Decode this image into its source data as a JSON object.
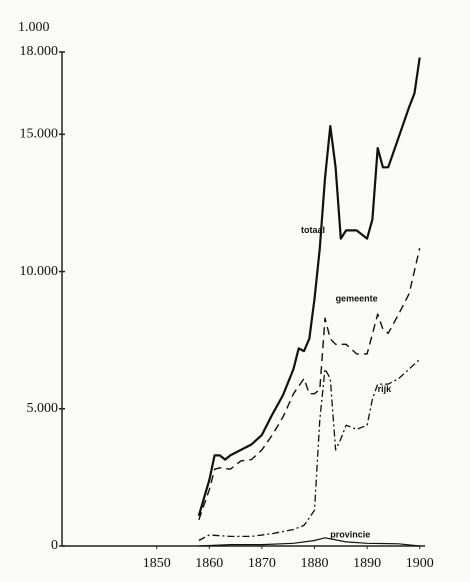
{
  "chart_data": {
    "type": "line",
    "y_label": "1.000",
    "xlim": [
      1832,
      1901
    ],
    "ylim": [
      0,
      18000
    ],
    "xticks": [
      1850,
      1860,
      1870,
      1880,
      1890,
      1900
    ],
    "yticks": [
      0,
      {
        "value": 5000,
        "label": "5.000"
      },
      {
        "value": 10000,
        "label": "10.000"
      },
      {
        "value": 15000,
        "label": "15.000"
      },
      {
        "value": 18000,
        "label": "18.000"
      }
    ],
    "series": [
      {
        "name": "totaal",
        "color": "#111111",
        "style": "solid",
        "x": [
          1858,
          1860,
          1861,
          1862,
          1863,
          1864,
          1866,
          1868,
          1870,
          1872,
          1874,
          1876,
          1877,
          1878,
          1879,
          1880,
          1881,
          1882,
          1883,
          1884,
          1885,
          1886,
          1888,
          1890,
          1891,
          1892,
          1893,
          1894,
          1896,
          1898,
          1899,
          1900
        ],
        "values": [
          1100,
          2400,
          3300,
          3300,
          3150,
          3300,
          3500,
          3700,
          4050,
          4800,
          5500,
          6450,
          7200,
          7100,
          7550,
          9000,
          10850,
          13400,
          15300,
          13800,
          11200,
          11500,
          11500,
          11200,
          11900,
          14500,
          13800,
          13800,
          14900,
          16000,
          16500,
          17800
        ]
      },
      {
        "name": "gemeente",
        "color": "#111111",
        "style": "dashed",
        "x": [
          1858,
          1860,
          1861,
          1862,
          1864,
          1866,
          1868,
          1870,
          1872,
          1874,
          1876,
          1878,
          1879,
          1880,
          1881,
          1882,
          1883,
          1884,
          1886,
          1888,
          1890,
          1892,
          1893,
          1894,
          1896,
          1898,
          1900
        ],
        "values": [
          950,
          2050,
          2800,
          2850,
          2800,
          3100,
          3150,
          3500,
          4050,
          4700,
          5550,
          6100,
          5550,
          5550,
          5700,
          8300,
          7550,
          7350,
          7350,
          7000,
          7000,
          8450,
          7900,
          7750,
          8450,
          9200,
          10850
        ]
      },
      {
        "name": "rijk",
        "color": "#111111",
        "style": "dashdot",
        "x": [
          1858,
          1860,
          1864,
          1868,
          1872,
          1876,
          1878,
          1880,
          1881,
          1882,
          1883,
          1884,
          1885,
          1886,
          1888,
          1890,
          1891,
          1892,
          1894,
          1896,
          1898,
          1900
        ],
        "values": [
          200,
          400,
          350,
          350,
          450,
          600,
          750,
          1300,
          4600,
          6450,
          6100,
          3500,
          3900,
          4400,
          4250,
          4400,
          5350,
          5900,
          5900,
          6100,
          6450,
          6800
        ]
      },
      {
        "name": "provincie",
        "color": "#111111",
        "style": "thin",
        "x": [
          1858,
          1864,
          1870,
          1876,
          1880,
          1882,
          1886,
          1890,
          1896,
          1900
        ],
        "values": [
          0,
          50,
          50,
          100,
          200,
          300,
          150,
          100,
          80,
          0
        ]
      }
    ]
  }
}
